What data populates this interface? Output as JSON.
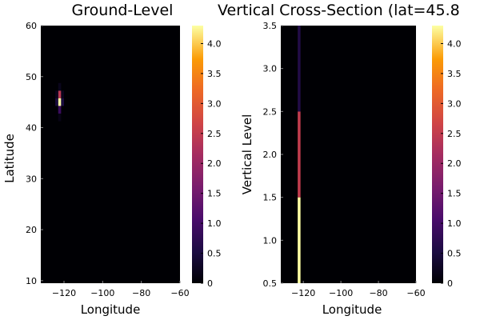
{
  "chart_data": [
    {
      "type": "heatmap",
      "title": "Ground-Level",
      "xlabel": "Longitude",
      "ylabel": "Latitude",
      "xlim": [
        -132,
        -60
      ],
      "ylim": [
        9.5,
        60
      ],
      "xticks": [
        "−120",
        "−100",
        "−80",
        "−60"
      ],
      "xtick_values": [
        -120,
        -100,
        -80,
        -60
      ],
      "yticks": [
        "10",
        "20",
        "30",
        "40",
        "50",
        "60"
      ],
      "ytick_values": [
        10,
        20,
        30,
        40,
        50,
        60
      ],
      "colormap": "inferno",
      "colorbar": {
        "min": 0,
        "max": 4.3,
        "ticks": [
          "0",
          "0.5",
          "1.0",
          "1.5",
          "2.0",
          "2.5",
          "3.0",
          "3.5",
          "4.0"
        ],
        "tick_values": [
          0,
          0.5,
          1.0,
          1.5,
          2.0,
          2.5,
          3.0,
          3.5,
          4.0
        ]
      },
      "cell_size": [
        1.5,
        1.5
      ],
      "cells": [
        {
          "lon": -122.25,
          "lat": 46.5,
          "value": 2.4
        },
        {
          "lon": -122.25,
          "lat": 45.0,
          "value": 4.3
        },
        {
          "lon": -122.25,
          "lat": 43.5,
          "value": 0.9
        },
        {
          "lon": -123.75,
          "lat": 46.5,
          "value": 0.2
        },
        {
          "lon": -123.75,
          "lat": 45.0,
          "value": 0.5
        },
        {
          "lon": -120.75,
          "lat": 46.5,
          "value": 0.2
        },
        {
          "lon": -120.75,
          "lat": 45.0,
          "value": 0.5
        },
        {
          "lon": -122.25,
          "lat": 48.0,
          "value": 0.2
        },
        {
          "lon": -122.25,
          "lat": 42.0,
          "value": 0.15
        }
      ]
    },
    {
      "type": "heatmap",
      "title": "Vertical Cross-Section (lat=45.8",
      "xlabel": "Longitude",
      "ylabel": "Vertical Level",
      "xlim": [
        -132,
        -60
      ],
      "ylim": [
        0.5,
        3.5
      ],
      "xticks": [
        "−120",
        "−100",
        "−80",
        "−60"
      ],
      "xtick_values": [
        -120,
        -100,
        -80,
        -60
      ],
      "yticks": [
        "0.5",
        "1.0",
        "1.5",
        "2.0",
        "2.5",
        "3.0",
        "3.5"
      ],
      "ytick_values": [
        0.5,
        1.0,
        1.5,
        2.0,
        2.5,
        3.0,
        3.5
      ],
      "colormap": "inferno",
      "colorbar": {
        "min": 0,
        "max": 4.3,
        "ticks": [
          "0",
          "0.5",
          "1.0",
          "1.5",
          "2.0",
          "2.5",
          "3.0",
          "3.5",
          "4.0"
        ],
        "tick_values": [
          0,
          0.5,
          1.0,
          1.5,
          2.0,
          2.5,
          3.0,
          3.5,
          4.0
        ]
      },
      "column_lon": [
        -123,
        -121.5
      ],
      "cells": [
        {
          "level_range": [
            0.5,
            1.5
          ],
          "value": 4.3
        },
        {
          "level_range": [
            1.5,
            2.5
          ],
          "value": 2.5
        },
        {
          "level_range": [
            2.5,
            3.5
          ],
          "value": 0.6
        }
      ]
    }
  ]
}
